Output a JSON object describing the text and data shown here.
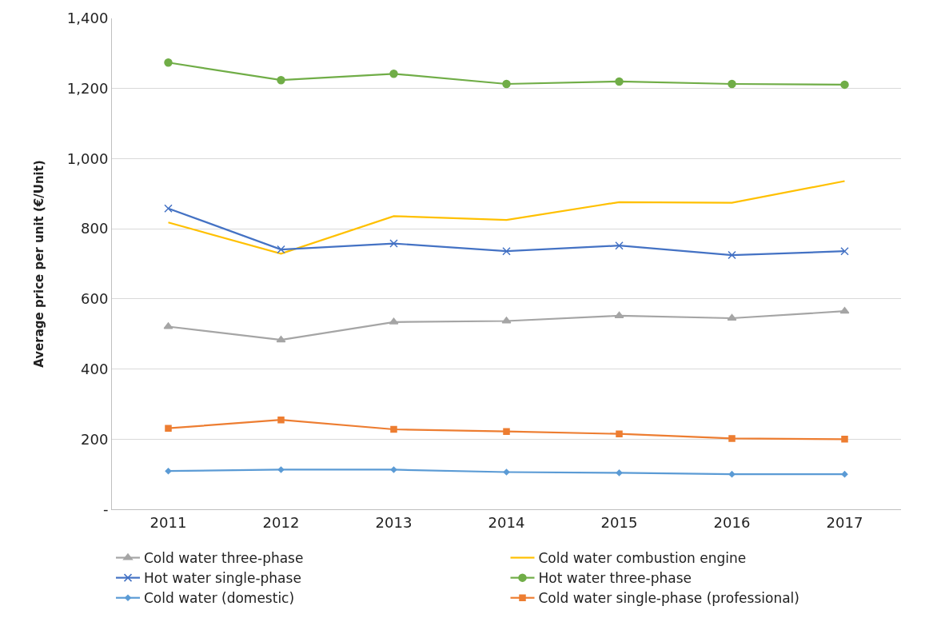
{
  "chart_data": {
    "type": "line",
    "ylabel": "Average price per unit (€/Unit)",
    "categories": [
      "2011",
      "2012",
      "2013",
      "2014",
      "2015",
      "2016",
      "2017"
    ],
    "series": [
      {
        "name": "Cold water three-phase",
        "color": "#a5a5a5",
        "marker": "triangle",
        "values": [
          521,
          483,
          534,
          537,
          552,
          545,
          565
        ]
      },
      {
        "name": "Cold water combustion engine",
        "color": "#ffc000",
        "marker": "none",
        "values": [
          818,
          729,
          836,
          825,
          876,
          874,
          936
        ]
      },
      {
        "name": "Hot water single-phase",
        "color": "#4472c4",
        "marker": "cross",
        "values": [
          858,
          741,
          758,
          736,
          752,
          725,
          736
        ]
      },
      {
        "name": "Hot water three-phase",
        "color": "#70ad47",
        "marker": "circle",
        "values": [
          1274,
          1224,
          1242,
          1213,
          1220,
          1213,
          1211
        ]
      },
      {
        "name": "Cold water (domestic)",
        "color": "#5b9bd5",
        "marker": "diamond",
        "values": [
          109,
          113,
          113,
          106,
          104,
          100,
          100
        ]
      },
      {
        "name": "Cold water single-phase (professional)",
        "color": "#ed7d31",
        "marker": "square",
        "values": [
          231,
          255,
          228,
          222,
          215,
          202,
          200
        ]
      }
    ],
    "ylim": [
      0,
      1400
    ],
    "yticks": [
      {
        "value": 0,
        "label": "-"
      },
      {
        "value": 200,
        "label": "200"
      },
      {
        "value": 400,
        "label": "400"
      },
      {
        "value": 600,
        "label": "600"
      },
      {
        "value": 800,
        "label": "800"
      },
      {
        "value": 1000,
        "label": "1,000"
      },
      {
        "value": 1200,
        "label": "1,200"
      },
      {
        "value": 1400,
        "label": "1,400"
      }
    ],
    "grid": "y",
    "legend": "bottom",
    "line_style": "solid"
  }
}
